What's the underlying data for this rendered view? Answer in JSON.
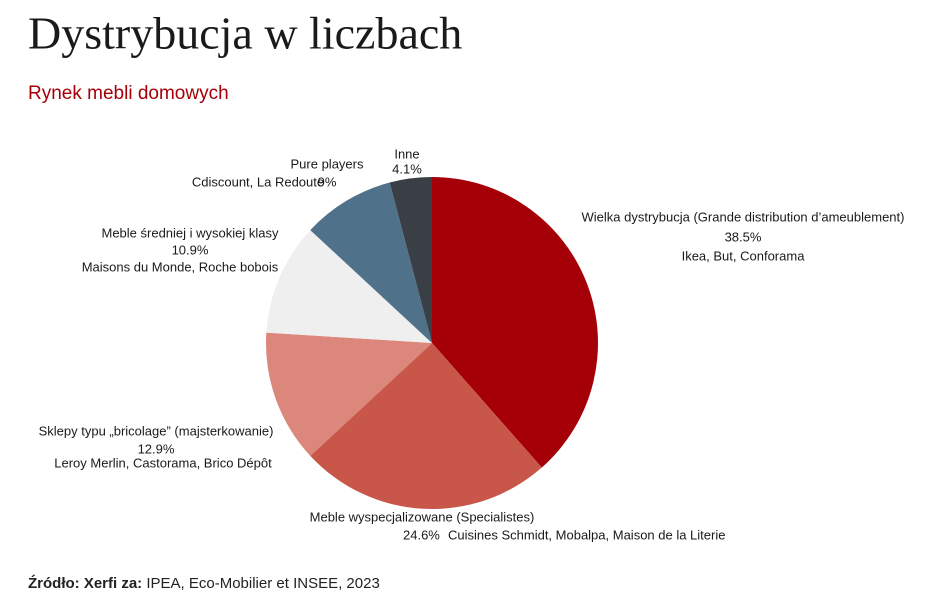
{
  "chart_data": {
    "type": "pie",
    "title": "Dystrybucja w liczbach",
    "subtitle": "Rynek mebli domowych",
    "categories": [
      "Wielka dystrybucja (Grande distribution d’ameublement)",
      "Meble wyspecjalizowane (Specialistes)",
      "Sklepy typu „bricolage” (majsterkowanie)",
      "Meble średniej i wysokiej klasy",
      "Pure players",
      "Inne"
    ],
    "values": [
      38.5,
      24.6,
      12.9,
      10.9,
      9,
      4.1
    ],
    "value_labels": [
      "38.5%",
      "24.6%",
      "12.9%",
      "10.9%",
      "9%",
      "4.1%"
    ],
    "descriptions": [
      "Ikea, But, Conforama",
      "Cuisines Schmidt, Mobalpa, Maison de la Literie",
      "Leroy Merlin, Castorama, Brico Dépôt",
      "Maisons du Monde, Roche bobois",
      "Cdiscount, La Redoute",
      null
    ],
    "colors": [
      "#a50008",
      "#c8574a",
      "#dc877c",
      "#efefef",
      "#4f7189",
      "#3a3f45"
    ],
    "source_label": "Źródło: Xerfi za:",
    "source": "IPEA, Eco-Mobilier et INSEE, 2023"
  }
}
